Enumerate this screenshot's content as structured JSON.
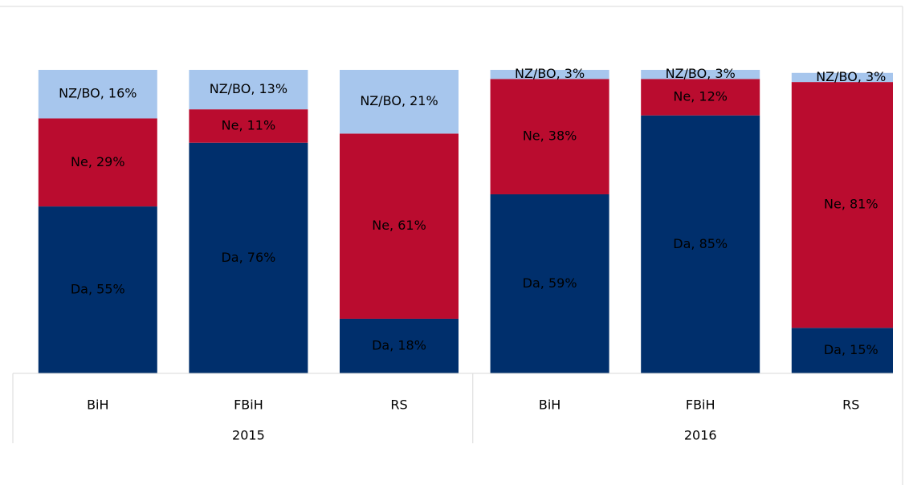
{
  "chart_data": {
    "type": "stacked_bar",
    "categories": [
      "BiH",
      "FBiH",
      "RS",
      "BiH",
      "FBiH",
      "RS"
    ],
    "groups": [
      "2015",
      "2016"
    ],
    "ylim": [
      0,
      100
    ],
    "series": [
      {
        "name": "Da",
        "color": "#002f6c",
        "values": [
          55,
          76,
          18,
          59,
          85,
          15
        ],
        "value_labels": [
          "Da, 55%",
          "Da, 76%",
          "Da, 18%",
          "Da, 59%",
          "Da, 85%",
          "Da, 15%"
        ]
      },
      {
        "name": "Ne",
        "color": "#ba0c2f",
        "values": [
          29,
          11,
          61,
          38,
          12,
          81
        ],
        "value_labels": [
          "Ne, 29%",
          "Ne, 11%",
          "Ne, 61%",
          "Ne, 38%",
          "Ne, 12%",
          "Ne, 81%"
        ]
      },
      {
        "name": "NZ/BO",
        "color": "#a7c6ed",
        "values": [
          16,
          13,
          21,
          3,
          3,
          3
        ],
        "value_labels": [
          "NZ/BO, 16%",
          "NZ/BO, 13%",
          "NZ/BO, 21%",
          "NZ/BO, 3%",
          "NZ/BO, 3%",
          "NZ/BO, 3%"
        ]
      }
    ]
  }
}
